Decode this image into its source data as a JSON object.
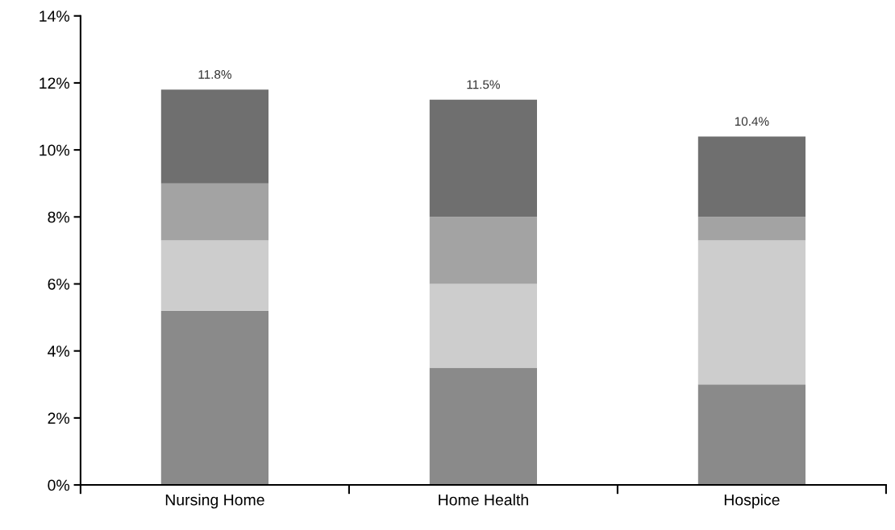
{
  "chart_data": {
    "type": "bar",
    "stacked": true,
    "categories": [
      "Nursing Home",
      "Home Health",
      "Hospice"
    ],
    "series": [
      {
        "color": "#8a8a8a",
        "values": [
          5.2,
          3.5,
          3.0
        ]
      },
      {
        "color": "#cdcdcd",
        "values": [
          2.1,
          2.5,
          4.3
        ]
      },
      {
        "color": "#a3a3a3",
        "values": [
          1.7,
          2.0,
          0.7
        ]
      },
      {
        "color": "#6f6f6f",
        "values": [
          2.8,
          3.5,
          2.4
        ]
      }
    ],
    "totals": [
      "11.8%",
      "11.5%",
      "10.4%"
    ],
    "ylim": [
      0,
      14
    ],
    "yticks": [
      {
        "value": 0,
        "label": "0%"
      },
      {
        "value": 2,
        "label": "2%"
      },
      {
        "value": 4,
        "label": "4%"
      },
      {
        "value": 6,
        "label": "6%"
      },
      {
        "value": 8,
        "label": "8%"
      },
      {
        "value": 10,
        "label": "10%"
      },
      {
        "value": 12,
        "label": "12%"
      },
      {
        "value": 14,
        "label": "14%"
      }
    ],
    "grid": false,
    "legend": false
  }
}
